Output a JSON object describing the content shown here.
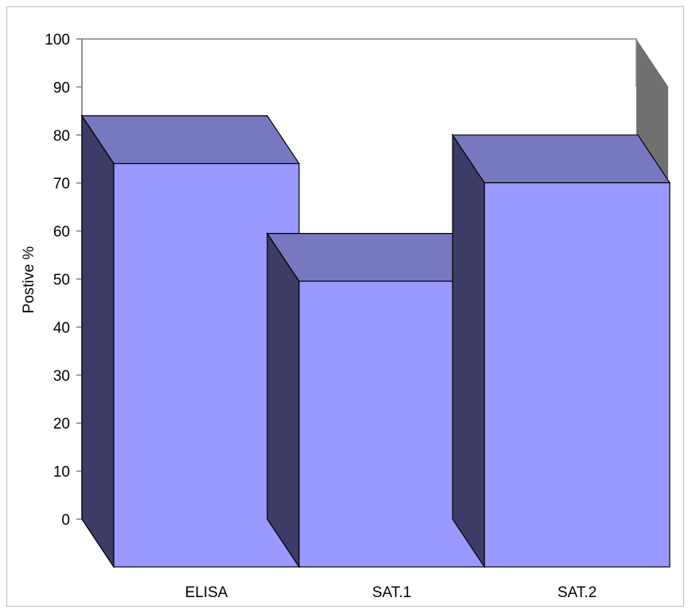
{
  "chart_data": {
    "type": "bar",
    "style": "3d",
    "title": "",
    "xlabel": "",
    "ylabel": "Postive %",
    "ylim": [
      0,
      100
    ],
    "yticks": [
      0,
      10,
      20,
      30,
      40,
      50,
      60,
      70,
      80,
      90,
      100
    ],
    "categories": [
      "ELISA",
      "SAT.1",
      "SAT.2"
    ],
    "values": [
      84,
      59.5,
      80
    ],
    "grid": false,
    "legend": "none",
    "colors": {
      "bar_front": "#9999ff",
      "bar_top": "#7878c0",
      "bar_side": "#3c3c66",
      "back_wall_side": "#707070",
      "outline": "#000000",
      "wall_line": "#808080"
    }
  }
}
